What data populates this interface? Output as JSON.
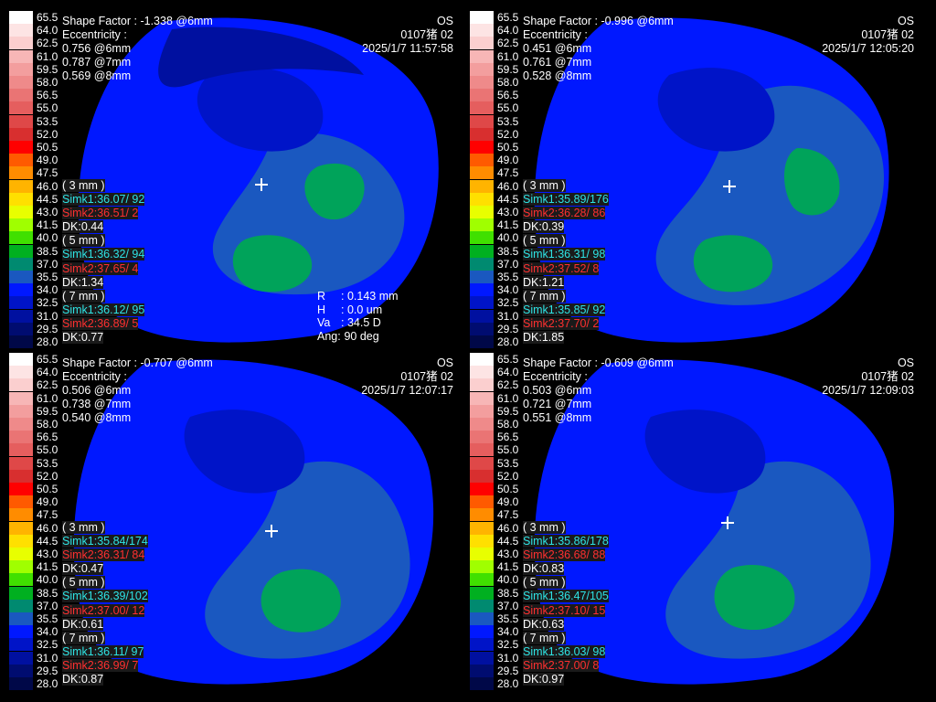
{
  "scale": [
    "65.5",
    "64.0",
    "62.5",
    "61.0",
    "59.5",
    "58.0",
    "56.5",
    "55.0",
    "53.5",
    "52.0",
    "50.5",
    "49.0",
    "47.5",
    "46.0",
    "44.5",
    "43.0",
    "41.5",
    "40.0",
    "38.5",
    "37.0",
    "35.5",
    "34.0",
    "32.5",
    "31.0",
    "29.5",
    "28.0"
  ],
  "scale_colors": [
    "#ffffff",
    "#fde4e4",
    "#fbcfcf",
    "#f7b6b6",
    "#f39e9e",
    "#ef8a8a",
    "#ea7474",
    "#e55e5e",
    "#df4848",
    "#d82f2f",
    "#ff0000",
    "#ff5a00",
    "#ff8c00",
    "#ffb400",
    "#ffe000",
    "#e8ff00",
    "#a0ff00",
    "#40e000",
    "#00b020",
    "#008a70",
    "#1a58c0",
    "#0018ff",
    "#0014c8",
    "#0010a0",
    "#000c70",
    "#000848"
  ],
  "panels": [
    {
      "shape_factor": "Shape Factor : -1.338 @6mm",
      "eye": "OS",
      "eccentricity_label": "Eccentricity :",
      "patient": "0107猪 02",
      "ecc_6": "0.756 @6mm",
      "ecc_7": "0.787 @7mm",
      "ecc_8": "0.569 @8mm",
      "datetime": "2025/1/7 11:57:58",
      "zone3": "( 3 mm )",
      "simk1_3": "Simk1:36.07/ 92",
      "simk2_3": "Simk2:36.51/  2",
      "dk_3": "DK:0.44",
      "zone5": "( 5 mm )",
      "simk1_5": "Simk1:36.32/ 94",
      "simk2_5": "Simk2:37.65/  4",
      "dk_5": "DK:1.34",
      "zone7": "( 7 mm )",
      "simk1_7": "Simk1:36.12/ 95",
      "simk2_7": "Simk2:36.89/  5",
      "dk_7": "DK:0.77",
      "params": [
        {
          "k": "R",
          "v": ":  0.143 mm"
        },
        {
          "k": "H",
          "v": ":  0.0 um"
        },
        {
          "k": "Va",
          "v": ":  34.5 D"
        },
        {
          "k": "Ang:",
          "v": " 90 deg"
        }
      ]
    },
    {
      "shape_factor": "Shape Factor : -0.996 @6mm",
      "eye": "OS",
      "eccentricity_label": "Eccentricity :",
      "patient": "0107猪 02",
      "ecc_6": "0.451 @6mm",
      "ecc_7": "0.761 @7mm",
      "ecc_8": "0.528 @8mm",
      "datetime": "2025/1/7 12:05:20",
      "zone3": "( 3 mm )",
      "simk1_3": "Simk1:35.89/176",
      "simk2_3": "Simk2:36.28/ 86",
      "dk_3": "DK:0.39",
      "zone5": "( 5 mm )",
      "simk1_5": "Simk1:36.31/ 98",
      "simk2_5": "Simk2:37.52/  8",
      "dk_5": "DK:1.21",
      "zone7": "( 7 mm )",
      "simk1_7": "Simk1:35.85/ 92",
      "simk2_7": "Simk2:37.70/  2",
      "dk_7": "DK:1.85",
      "params": []
    },
    {
      "shape_factor": "Shape Factor : -0.707 @6mm",
      "eye": "OS",
      "eccentricity_label": "Eccentricity :",
      "patient": "0107猪 02",
      "ecc_6": "0.506 @6mm",
      "ecc_7": "0.738 @7mm",
      "ecc_8": "0.540 @8mm",
      "datetime": "2025/1/7 12:07:17",
      "zone3": "( 3 mm )",
      "simk1_3": "Simk1:35.84/174",
      "simk2_3": "Simk2:36.31/ 84",
      "dk_3": "DK:0.47",
      "zone5": "( 5 mm )",
      "simk1_5": "Simk1:36.39/102",
      "simk2_5": "Simk2:37.00/ 12",
      "dk_5": "DK:0.61",
      "zone7": "( 7 mm )",
      "simk1_7": "Simk1:36.11/ 97",
      "simk2_7": "Simk2:36.99/  7",
      "dk_7": "DK:0.87",
      "params": []
    },
    {
      "shape_factor": "Shape Factor : -0.609 @6mm",
      "eye": "OS",
      "eccentricity_label": "Eccentricity :",
      "patient": "0107猪 02",
      "ecc_6": "0.503 @6mm",
      "ecc_7": "0.721 @7mm",
      "ecc_8": "0.551 @8mm",
      "datetime": "2025/1/7 12:09:03",
      "zone3": "( 3 mm )",
      "simk1_3": "Simk1:35.86/178",
      "simk2_3": "Simk2:36.68/ 88",
      "dk_3": "DK:0.83",
      "zone5": "( 5 mm )",
      "simk1_5": "Simk1:36.47/105",
      "simk2_5": "Simk2:37.10/ 15",
      "dk_5": "DK:0.63",
      "zone7": "( 7 mm )",
      "simk1_7": "Simk1:36.03/ 98",
      "simk2_7": "Simk2:37.00/  8",
      "dk_7": "DK:0.97",
      "params": []
    }
  ]
}
